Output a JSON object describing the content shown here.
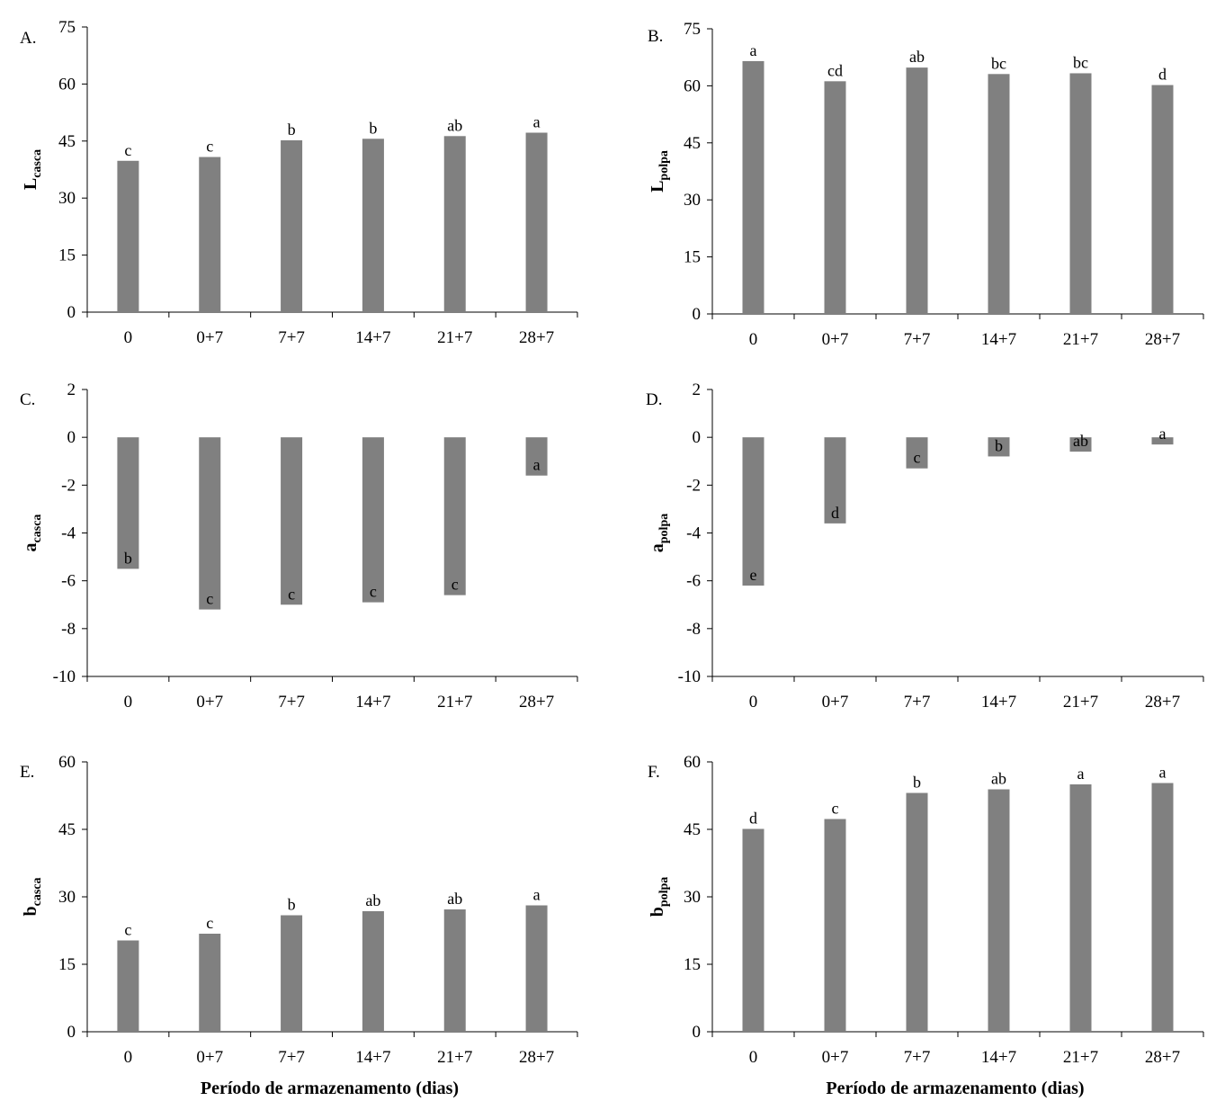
{
  "chart_data": [
    {
      "type": "bar",
      "panel": "A.",
      "ylabel": "L",
      "ylabel_sub": "casca",
      "xlabel": "",
      "categories": [
        "0",
        "0+7",
        "7+7",
        "14+7",
        "21+7",
        "28+7"
      ],
      "values": [
        39.8,
        40.8,
        45.2,
        45.6,
        46.3,
        47.2
      ],
      "letters": [
        "c",
        "c",
        "b",
        "b",
        "ab",
        "a"
      ],
      "ylim": [
        0,
        75
      ],
      "yticks": [
        "0",
        "15",
        "30",
        "45",
        "60",
        "75"
      ],
      "bar_color": "#808080",
      "grid": false,
      "legend": "none"
    },
    {
      "type": "bar",
      "panel": "B.",
      "ylabel": "L",
      "ylabel_sub": "polpa",
      "xlabel": "",
      "categories": [
        "0",
        "0+7",
        "7+7",
        "14+7",
        "21+7",
        "28+7"
      ],
      "values": [
        66.5,
        61.2,
        64.8,
        63.1,
        63.3,
        60.2
      ],
      "letters": [
        "a",
        "cd",
        "ab",
        "bc",
        "bc",
        "d"
      ],
      "ylim": [
        0,
        75
      ],
      "yticks": [
        "0",
        "15",
        "30",
        "45",
        "60",
        "75"
      ],
      "bar_color": "#808080",
      "grid": false,
      "legend": "none"
    },
    {
      "type": "bar",
      "panel": "C.",
      "ylabel": "a",
      "ylabel_sub": "casca",
      "xlabel": "",
      "categories": [
        "0",
        "0+7",
        "7+7",
        "14+7",
        "21+7",
        "28+7"
      ],
      "values": [
        -5.5,
        -7.2,
        -7.0,
        -6.9,
        -6.6,
        -1.6
      ],
      "letters": [
        "b",
        "c",
        "c",
        "c",
        "c",
        "a"
      ],
      "ylim": [
        -10,
        2
      ],
      "yticks": [
        "-10",
        "-8",
        "-6",
        "-4",
        "-2",
        "0",
        "2"
      ],
      "bar_color": "#808080",
      "grid": false,
      "legend": "none"
    },
    {
      "type": "bar",
      "panel": "D.",
      "ylabel": "a",
      "ylabel_sub": "polpa",
      "xlabel": "",
      "categories": [
        "0",
        "0+7",
        "7+7",
        "14+7",
        "21+7",
        "28+7"
      ],
      "values": [
        -6.2,
        -3.6,
        -1.3,
        -0.8,
        -0.6,
        -0.3
      ],
      "letters": [
        "e",
        "d",
        "c",
        "b",
        "ab",
        "a"
      ],
      "ylim": [
        -10,
        2
      ],
      "yticks": [
        "-10",
        "-8",
        "-6",
        "-4",
        "-2",
        "0",
        "2"
      ],
      "bar_color": "#808080",
      "grid": false,
      "legend": "none"
    },
    {
      "type": "bar",
      "panel": "E.",
      "ylabel": "b",
      "ylabel_sub": "casca",
      "xlabel": "Período de armazenamento (dias)",
      "categories": [
        "0",
        "0+7",
        "7+7",
        "14+7",
        "21+7",
        "28+7"
      ],
      "values": [
        20.3,
        21.8,
        25.9,
        26.8,
        27.2,
        28.1
      ],
      "letters": [
        "c",
        "c",
        "b",
        "ab",
        "ab",
        "a"
      ],
      "ylim": [
        0,
        60
      ],
      "yticks": [
        "0",
        "15",
        "30",
        "45",
        "60"
      ],
      "bar_color": "#808080",
      "grid": false,
      "legend": "none"
    },
    {
      "type": "bar",
      "panel": "F.",
      "ylabel": "b",
      "ylabel_sub": "polpa",
      "xlabel": "Período de armazenamento (dias)",
      "categories": [
        "0",
        "0+7",
        "7+7",
        "14+7",
        "21+7",
        "28+7"
      ],
      "values": [
        45.1,
        47.3,
        53.1,
        53.9,
        55.0,
        55.3
      ],
      "letters": [
        "d",
        "c",
        "b",
        "ab",
        "a",
        "a"
      ],
      "ylim": [
        0,
        60
      ],
      "yticks": [
        "0",
        "15",
        "30",
        "45",
        "60"
      ],
      "bar_color": "#808080",
      "grid": false,
      "legend": "none"
    }
  ]
}
